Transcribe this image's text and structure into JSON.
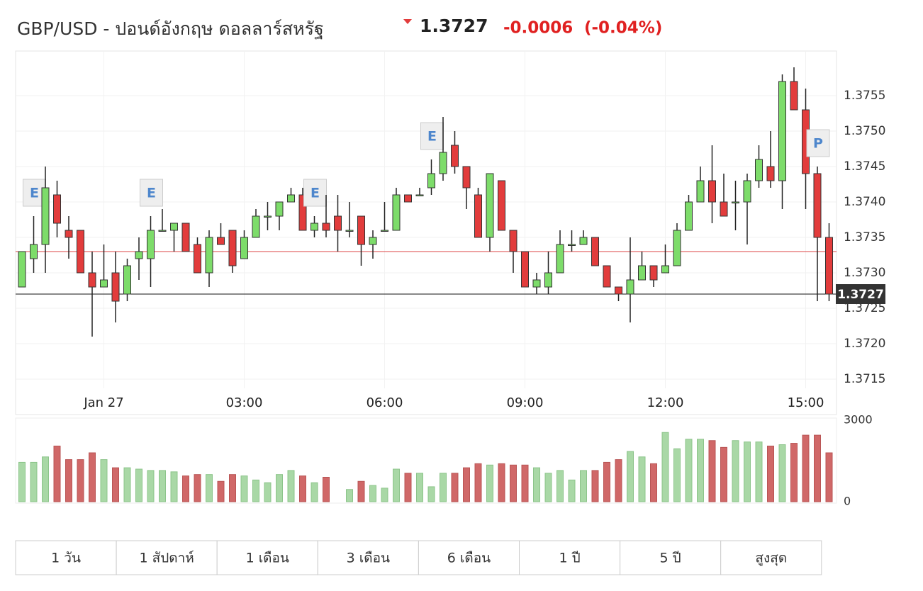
{
  "header": {
    "title": "GBP/USD - ปอนด์อังกฤษ ดอลลาร์สหรัฐ",
    "price": 1.3727,
    "change": -0.0006,
    "change_pct": {
      "value": -0.04,
      "label": "(-0.04%)"
    }
  },
  "chart_data": [
    {
      "type": "candlestick",
      "categories": [
        null,
        null,
        null,
        null,
        null,
        null,
        null,
        "Jan 27",
        null,
        null,
        null,
        null,
        null,
        null,
        null,
        null,
        null,
        null,
        null,
        "03:00",
        null,
        null,
        null,
        null,
        null,
        null,
        null,
        null,
        null,
        null,
        null,
        "06:00",
        null,
        null,
        null,
        null,
        null,
        null,
        null,
        null,
        null,
        null,
        null,
        "09:00",
        null,
        null,
        null,
        null,
        null,
        null,
        null,
        null,
        null,
        null,
        null,
        "12:00",
        null,
        null,
        null,
        null,
        null,
        null,
        null,
        null,
        null,
        null,
        null,
        "15:00",
        null,
        null
      ],
      "open": [
        1.3728,
        1.3732,
        1.3734,
        1.3741,
        1.3736,
        1.3736,
        1.373,
        1.3728,
        1.373,
        1.3727,
        1.3732,
        1.3732,
        1.3736,
        1.3736,
        1.3737,
        1.3734,
        1.373,
        1.3735,
        1.3736,
        1.3732,
        1.3735,
        1.3738,
        1.3738,
        1.374,
        1.3741,
        1.3736,
        1.3737,
        1.3738,
        1.3736,
        1.3738,
        1.3734,
        1.3736,
        1.3736,
        1.3741,
        1.3741,
        1.3742,
        1.3744,
        1.3748,
        1.3745,
        1.3741,
        1.3735,
        1.3743,
        1.3736,
        1.3733,
        1.3728,
        1.3728,
        1.373,
        1.3734,
        1.3734,
        1.3735,
        1.3731,
        1.3728,
        1.3727,
        1.3729,
        1.3731,
        1.373,
        1.3731,
        1.3736,
        1.374,
        1.3743,
        1.374,
        1.374,
        1.374,
        1.3743,
        1.3745,
        1.3743,
        1.3757,
        1.3753,
        1.3744,
        1.3735
      ],
      "high": [
        1.3733,
        1.3738,
        1.3745,
        1.3743,
        1.3738,
        1.3736,
        1.3733,
        1.3734,
        1.3733,
        1.3732,
        1.3735,
        1.3738,
        1.3739,
        1.3737,
        1.3737,
        1.3735,
        1.3736,
        1.3737,
        1.3736,
        1.3736,
        1.3739,
        1.374,
        1.374,
        1.3742,
        1.3742,
        1.3738,
        1.3741,
        1.3741,
        1.374,
        1.3738,
        1.3736,
        1.374,
        1.3742,
        1.3741,
        1.3742,
        1.3746,
        1.3752,
        1.375,
        1.3745,
        1.3742,
        1.3744,
        1.3743,
        1.3736,
        1.3733,
        1.373,
        1.3733,
        1.3736,
        1.3736,
        1.3736,
        1.3735,
        1.3731,
        1.3728,
        1.3735,
        1.3733,
        1.3731,
        1.3734,
        1.3737,
        1.3741,
        1.3745,
        1.3748,
        1.3744,
        1.3743,
        1.3744,
        1.3748,
        1.375,
        1.3758,
        1.3759,
        1.3756,
        1.3745,
        1.3737
      ],
      "low": [
        1.3728,
        1.373,
        1.373,
        1.3735,
        1.3732,
        1.373,
        1.3721,
        1.3728,
        1.3723,
        1.3726,
        1.3729,
        1.3728,
        1.3736,
        1.3733,
        1.3733,
        1.373,
        1.3728,
        1.3734,
        1.373,
        1.3732,
        1.3735,
        1.3736,
        1.3736,
        1.374,
        1.3736,
        1.3735,
        1.3735,
        1.3733,
        1.3735,
        1.3731,
        1.3732,
        1.3736,
        1.3736,
        1.374,
        1.3741,
        1.3741,
        1.3743,
        1.3744,
        1.3739,
        1.3735,
        1.3733,
        1.3736,
        1.373,
        1.3728,
        1.3727,
        1.3727,
        1.373,
        1.3733,
        1.3734,
        1.3731,
        1.3728,
        1.3726,
        1.3723,
        1.3729,
        1.3728,
        1.373,
        1.3731,
        1.3736,
        1.374,
        1.3737,
        1.3738,
        1.3736,
        1.3734,
        1.3742,
        1.3742,
        1.3739,
        1.3753,
        1.3739,
        1.3726,
        1.3726
      ],
      "close": [
        1.3733,
        1.3734,
        1.3742,
        1.3737,
        1.3735,
        1.373,
        1.3728,
        1.3729,
        1.3726,
        1.3731,
        1.3733,
        1.3736,
        1.3736,
        1.3737,
        1.3733,
        1.373,
        1.3735,
        1.3734,
        1.3731,
        1.3735,
        1.3738,
        1.3738,
        1.374,
        1.3741,
        1.3736,
        1.3737,
        1.3736,
        1.3736,
        1.3736,
        1.3734,
        1.3735,
        1.3736,
        1.3741,
        1.374,
        1.3741,
        1.3744,
        1.3747,
        1.3745,
        1.3742,
        1.3735,
        1.3744,
        1.3736,
        1.3733,
        1.3728,
        1.3729,
        1.373,
        1.3734,
        1.3734,
        1.3735,
        1.3731,
        1.3728,
        1.3727,
        1.3729,
        1.3731,
        1.3729,
        1.3731,
        1.3736,
        1.374,
        1.3743,
        1.374,
        1.3738,
        1.374,
        1.3743,
        1.3746,
        1.3743,
        1.3757,
        1.3753,
        1.3744,
        1.3735,
        1.3727
      ],
      "event_labels": [
        null,
        "E",
        null,
        null,
        null,
        null,
        null,
        null,
        null,
        null,
        null,
        "E",
        null,
        null,
        null,
        null,
        null,
        null,
        null,
        null,
        null,
        null,
        null,
        null,
        null,
        "E",
        null,
        null,
        null,
        null,
        null,
        null,
        null,
        null,
        null,
        "E",
        null,
        null,
        null,
        null,
        null,
        null,
        null,
        null,
        null,
        null,
        null,
        null,
        null,
        null,
        null,
        null,
        null,
        null,
        null,
        null,
        null,
        null,
        null,
        null,
        null,
        null,
        null,
        null,
        null,
        null,
        null,
        null,
        "P",
        null
      ],
      "ylim": [
        1.3714,
        1.376
      ],
      "yticks": [
        1.3715,
        {
          "value": 1.372,
          "label": "1.3720"
        },
        1.3725,
        {
          "value": 1.373,
          "label": "1.3730"
        },
        1.3735,
        {
          "value": 1.374,
          "label": "1.3740"
        },
        1.3745,
        {
          "value": 1.375,
          "label": "1.3750"
        },
        1.3755
      ],
      "reference_line": 1.3733,
      "up_color": "#7ddc6a",
      "down_color": "#e23c3c",
      "grid": true
    },
    {
      "type": "bar",
      "values": [
        1450,
        1450,
        1650,
        2050,
        1550,
        1550,
        1800,
        1550,
        1250,
        1250,
        1200,
        1150,
        1150,
        1100,
        950,
        1000,
        1000,
        750,
        1000,
        950,
        800,
        700,
        1000,
        1150,
        950,
        700,
        900,
        null,
        450,
        750,
        600,
        500,
        1200,
        1050,
        1050,
        550,
        1050,
        1050,
        1250,
        1400,
        1350,
        1400,
        1350,
        1350,
        1250,
        1050,
        1150,
        800,
        1150,
        1150,
        1450,
        1550,
        1850,
        1650,
        1400,
        2550,
        1950,
        2300,
        2300,
        2250,
        2000,
        2250,
        2200,
        2200,
        2050,
        2100,
        2150,
        2450,
        2450,
        1800
      ],
      "ylim": [
        0,
        3000
      ],
      "yticks": [
        0,
        3000
      ],
      "up_color": "#a9d8a6",
      "down_color": "#d06868"
    }
  ],
  "periods": [
    "1 วัน",
    "1 สัปดาห์",
    "1 เดือน",
    "3 เดือน",
    "6 เดือน",
    "1 ปี",
    "5 ปี",
    "สูงสุด"
  ]
}
